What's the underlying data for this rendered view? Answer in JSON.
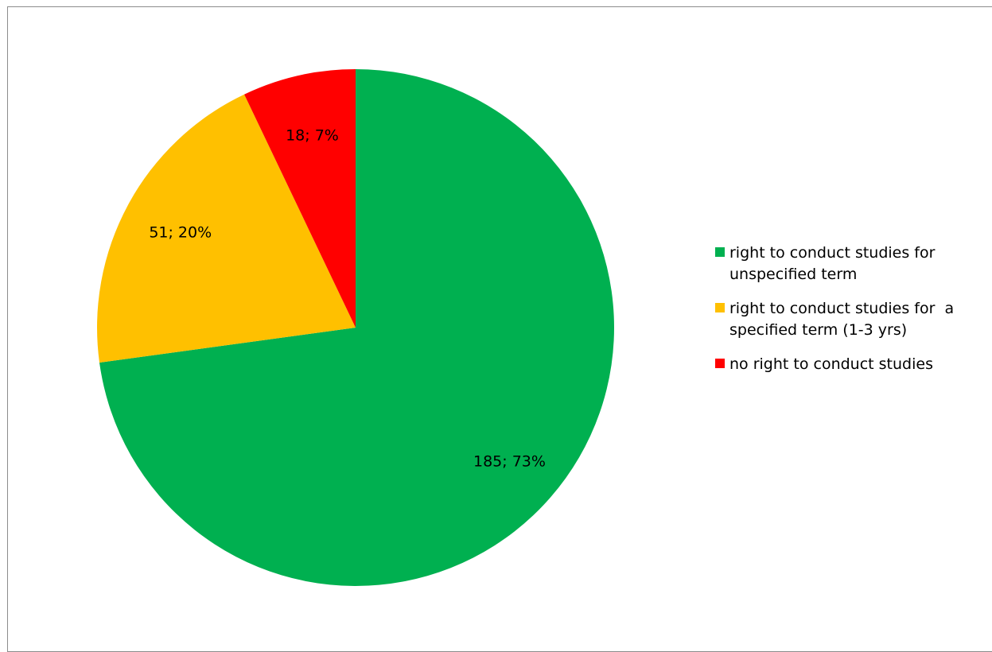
{
  "chart_data": {
    "type": "pie",
    "title": "",
    "start_angle_deg": 0,
    "direction": "clockwise",
    "slices": [
      {
        "name": "right to conduct studies for unspecified term",
        "value": 185,
        "percent": 73,
        "label": "185; 73%",
        "color": "#00B050"
      },
      {
        "name": "right to conduct studies for  a specified term (1-3 yrs)",
        "value": 51,
        "percent": 20,
        "label": "51; 20%",
        "color": "#FFC000"
      },
      {
        "name": "no right to conduct studies",
        "value": 18,
        "percent": 7,
        "label": "18; 7%",
        "color": "#FF0000"
      }
    ],
    "legend_position": "right",
    "data_labels": true
  },
  "legend": {
    "items": [
      {
        "label": "right to conduct studies for\nunspecified term",
        "color": "#00B050"
      },
      {
        "label": "right to conduct studies for  a\nspecified term (1-3 yrs)",
        "color": "#FFC000"
      },
      {
        "label": "no right to conduct studies",
        "color": "#FF0000"
      }
    ]
  }
}
